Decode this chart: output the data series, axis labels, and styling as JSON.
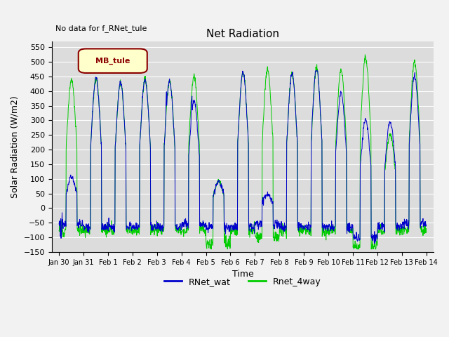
{
  "title": "Net Radiation",
  "xlabel": "Time",
  "ylabel": "Solar Radiation (W/m2)",
  "ylim": [
    -150,
    570
  ],
  "yticks": [
    -150,
    -100,
    -50,
    0,
    50,
    100,
    150,
    200,
    250,
    300,
    350,
    400,
    450,
    500,
    550
  ],
  "annotation_text": "No data for f_RNet_tule",
  "legend_box_label": "MB_tule",
  "legend_box_facecolor": "#ffffcc",
  "legend_box_edgecolor": "#8b0000",
  "line1_label": "RNet_wat",
  "line1_color": "#0000cc",
  "line2_label": "Rnet_4way",
  "line2_color": "#00cc00",
  "plot_bg_color": "#dcdcdc",
  "fig_bg_color": "#f2f2f2",
  "xtick_labels": [
    "Jan 30",
    "Jan 31",
    "Feb 1",
    "Feb 2",
    "Feb 3",
    "Feb 4",
    "Feb 5",
    "Feb 6",
    "Feb 7",
    "Feb 8",
    "Feb 9",
    "Feb 10",
    "Feb 11",
    "Feb 12",
    "Feb 13",
    "Feb 14"
  ],
  "green_peaks": [
    440,
    445,
    430,
    440,
    435,
    455,
    90,
    465,
    475,
    460,
    480,
    470,
    515,
    255,
    500
  ],
  "blue_peaks": [
    105,
    445,
    430,
    440,
    435,
    365,
    90,
    465,
    44,
    460,
    480,
    395,
    300,
    295,
    455
  ],
  "green_night_vals": [
    -75,
    -75,
    -75,
    -75,
    -75,
    -75,
    -120,
    -75,
    -100,
    -75,
    -75,
    -75,
    -130,
    -75,
    -75
  ],
  "blue_night_vals": [
    -55,
    -65,
    -65,
    -65,
    -65,
    -55,
    -65,
    -65,
    -55,
    -65,
    -65,
    -65,
    -100,
    -65,
    -55
  ]
}
